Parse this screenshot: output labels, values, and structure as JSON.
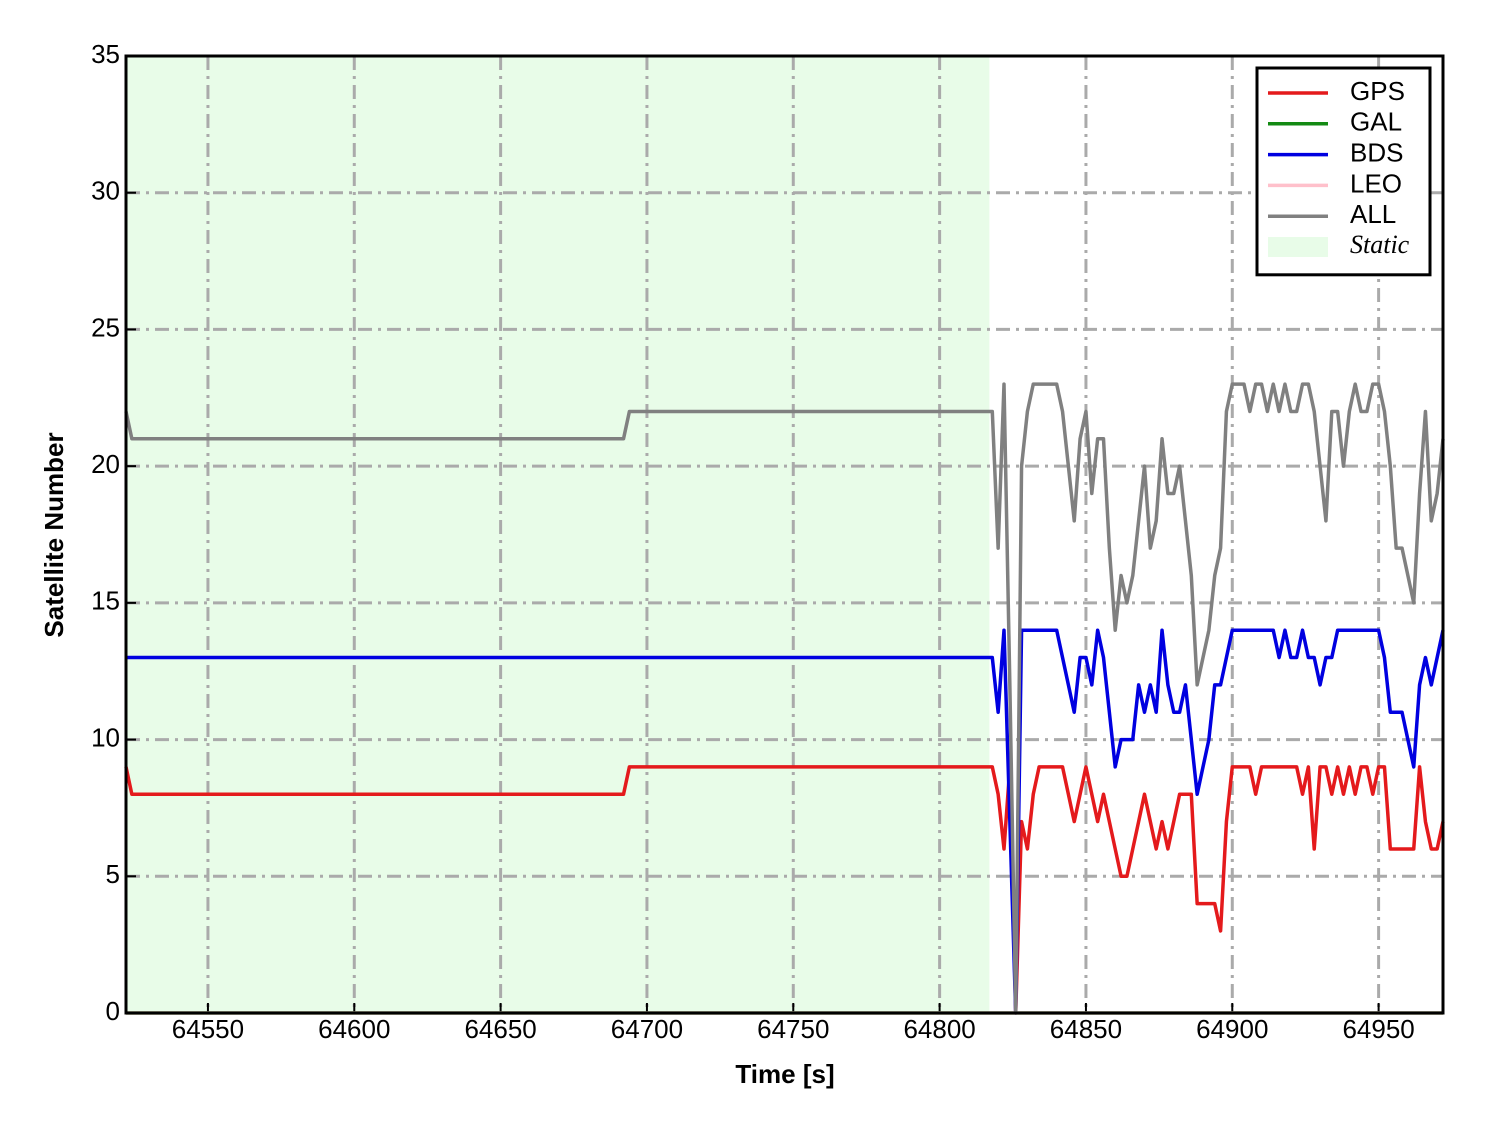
{
  "chart_data": {
    "type": "line",
    "xlabel": "Time [s]",
    "ylabel": "Satellite Number",
    "xlim": [
      64522,
      64972
    ],
    "ylim": [
      0,
      35
    ],
    "xticks": [
      64550,
      64600,
      64650,
      64700,
      64750,
      64800,
      64850,
      64900,
      64950
    ],
    "yticks": [
      0,
      5,
      10,
      15,
      20,
      25,
      30,
      35
    ],
    "grid": true,
    "legend": "upper right",
    "shaded_region": {
      "name": "Static",
      "color": "#e8fce8",
      "x": [
        64522,
        64817
      ]
    },
    "x": [
      64522,
      64524,
      64692,
      64694,
      64816,
      64818,
      64820,
      64822,
      64824,
      64826,
      64828,
      64830,
      64832,
      64834,
      64836,
      64838,
      64840,
      64842,
      64844,
      64846,
      64848,
      64850,
      64852,
      64854,
      64856,
      64858,
      64860,
      64862,
      64864,
      64866,
      64868,
      64870,
      64872,
      64874,
      64876,
      64878,
      64880,
      64882,
      64884,
      64886,
      64888,
      64890,
      64892,
      64894,
      64896,
      64898,
      64900,
      64902,
      64904,
      64906,
      64908,
      64910,
      64912,
      64914,
      64916,
      64918,
      64920,
      64922,
      64924,
      64926,
      64928,
      64930,
      64932,
      64934,
      64936,
      64938,
      64940,
      64942,
      64944,
      64946,
      64948,
      64950,
      64952,
      64954,
      64956,
      64958,
      64960,
      64962,
      64964,
      64966,
      64968,
      64970,
      64972
    ],
    "series": [
      {
        "name": "GPS",
        "color": "#e41a1c",
        "values": [
          9,
          8,
          8,
          9,
          9,
          9,
          8,
          6,
          9,
          0,
          7,
          6,
          8,
          9,
          9,
          9,
          9,
          9,
          8,
          7,
          8,
          9,
          8,
          7,
          8,
          7,
          6,
          5,
          5,
          6,
          7,
          8,
          7,
          6,
          7,
          6,
          7,
          8,
          8,
          8,
          4,
          4,
          4,
          4,
          3,
          7,
          9,
          9,
          9,
          9,
          8,
          9,
          9,
          9,
          9,
          9,
          9,
          9,
          8,
          9,
          6,
          9,
          9,
          8,
          9,
          8,
          9,
          8,
          9,
          9,
          8,
          9,
          9,
          6,
          6,
          6,
          6,
          6,
          9,
          7,
          6,
          6,
          7
        ]
      },
      {
        "name": "GAL",
        "color": "#138a13",
        "values": [
          0,
          0,
          0,
          0,
          0,
          0,
          0,
          0,
          0,
          0,
          0,
          0,
          0,
          0,
          0,
          0,
          0,
          0,
          0,
          0,
          0,
          0,
          0,
          0,
          0,
          0,
          0,
          0,
          0,
          0,
          0,
          0,
          0,
          0,
          0,
          0,
          0,
          0,
          0,
          0,
          0,
          0,
          0,
          0,
          0,
          0,
          0,
          0,
          0,
          0,
          0,
          0,
          0,
          0,
          0,
          0,
          0,
          0,
          0,
          0,
          0,
          0,
          0,
          0,
          0,
          0,
          0,
          0,
          0,
          0,
          0,
          0,
          0,
          0,
          0,
          0,
          0,
          0,
          0,
          0,
          0,
          0,
          0
        ]
      },
      {
        "name": "BDS",
        "color": "#0000e0",
        "values": [
          13,
          13,
          13,
          13,
          13,
          13,
          11,
          14,
          7,
          0,
          14,
          14,
          14,
          14,
          14,
          14,
          14,
          13,
          12,
          11,
          13,
          13,
          12,
          14,
          13,
          11,
          9,
          10,
          10,
          10,
          12,
          11,
          12,
          11,
          14,
          12,
          11,
          11,
          12,
          10,
          8,
          9,
          10,
          12,
          12,
          13,
          14,
          14,
          14,
          14,
          14,
          14,
          14,
          14,
          13,
          14,
          13,
          13,
          14,
          13,
          13,
          12,
          13,
          13,
          14,
          14,
          14,
          14,
          14,
          14,
          14,
          14,
          13,
          11,
          11,
          11,
          10,
          9,
          12,
          13,
          12,
          13,
          14
        ]
      },
      {
        "name": "LEO",
        "color": "#ffc0cb",
        "values": [
          0,
          0,
          0,
          0,
          0,
          0,
          0,
          0,
          0,
          0,
          0,
          0,
          0,
          0,
          0,
          0,
          0,
          0,
          0,
          0,
          0,
          0,
          0,
          0,
          0,
          0,
          0,
          0,
          0,
          0,
          0,
          0,
          0,
          0,
          0,
          0,
          0,
          0,
          0,
          0,
          0,
          0,
          0,
          0,
          0,
          0,
          0,
          0,
          0,
          0,
          0,
          0,
          0,
          0,
          0,
          0,
          0,
          0,
          0,
          0,
          0,
          0,
          0,
          0,
          0,
          0,
          0,
          0,
          0,
          0,
          0,
          0,
          0,
          0,
          0,
          0,
          0,
          0,
          0,
          0,
          0,
          0,
          0
        ]
      },
      {
        "name": "ALL",
        "color": "#808080",
        "values": [
          22,
          21,
          21,
          22,
          22,
          22,
          17,
          23,
          12,
          0,
          20,
          22,
          23,
          23,
          23,
          23,
          23,
          22,
          20,
          18,
          21,
          22,
          19,
          21,
          21,
          17,
          14,
          16,
          15,
          16,
          18,
          20,
          17,
          18,
          21,
          19,
          19,
          20,
          18,
          16,
          12,
          13,
          14,
          16,
          17,
          22,
          23,
          23,
          23,
          22,
          23,
          23,
          22,
          23,
          22,
          23,
          22,
          22,
          23,
          23,
          22,
          20,
          18,
          22,
          22,
          20,
          22,
          23,
          22,
          22,
          23,
          23,
          22,
          20,
          17,
          17,
          16,
          15,
          19,
          22,
          18,
          19,
          21
        ]
      }
    ]
  }
}
